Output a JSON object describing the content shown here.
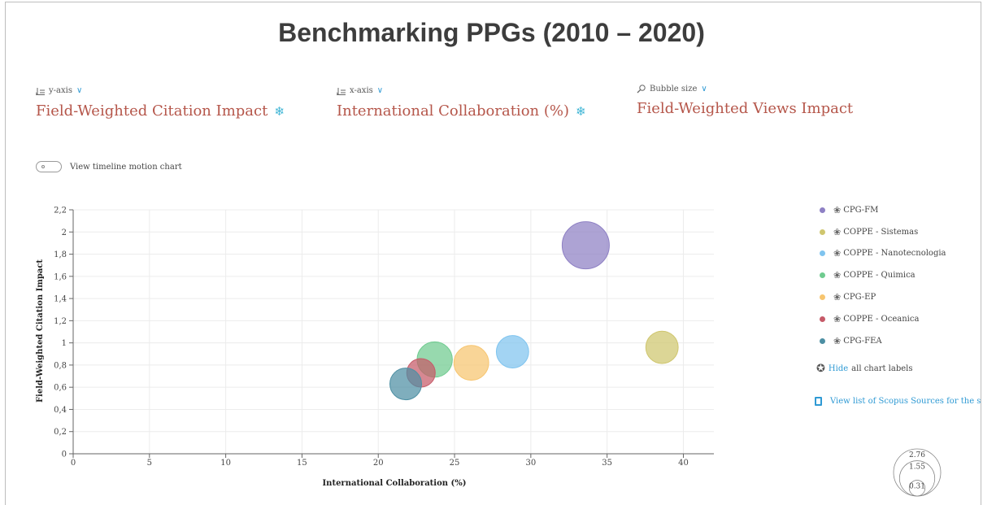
{
  "page_title": "Benchmarking PPGs (2010 – 2020)",
  "y_selector": {
    "label": "y-axis",
    "value": "Field-Weighted Citation Impact",
    "icon": "snowflake-icon"
  },
  "x_selector": {
    "label": "x-axis",
    "value": "International Collaboration (%)",
    "icon": "snowflake-icon"
  },
  "size_selector": {
    "label": "Bubble size",
    "value": "Field-Weighted Views Impact"
  },
  "timeline_toggle": {
    "label": "View timeline motion chart",
    "on": false
  },
  "hide_labels": {
    "link": "Hide",
    "rest": "all chart labels"
  },
  "scopus_link": "View list of Scopus Sources for the se",
  "size_key": {
    "values": [
      "2.76",
      "1.55",
      "0.31"
    ]
  },
  "chart_data": {
    "type": "scatter",
    "xlabel": "International Collaboration (%)",
    "ylabel": "Field-Weighted Citation Impact",
    "xlim": [
      0,
      42
    ],
    "ylim": [
      0,
      2.2
    ],
    "x_ticks": [
      "0",
      "5",
      "10",
      "15",
      "20",
      "25",
      "30",
      "35",
      "40"
    ],
    "y_ticks": [
      "0",
      "0,2",
      "0,4",
      "0,6",
      "0,8",
      "1",
      "1,2",
      "1,4",
      "1,6",
      "1,8",
      "2",
      "2,2"
    ],
    "grid": true,
    "legend_position": "right",
    "series": [
      {
        "name": "CPG-FM",
        "x": 33.6,
        "y": 1.88,
        "size": 2.76,
        "color": "#8e80c4"
      },
      {
        "name": "COPPE - Sistemas",
        "x": 38.6,
        "y": 0.96,
        "size": 1.3,
        "color": "#cfc66e"
      },
      {
        "name": "COPPE - Nanotecnologia",
        "x": 28.8,
        "y": 0.92,
        "size": 1.3,
        "color": "#7fc4ef"
      },
      {
        "name": "COPPE - Quimica",
        "x": 23.7,
        "y": 0.85,
        "size": 1.55,
        "color": "#6fcb8f"
      },
      {
        "name": "CPG-EP",
        "x": 26.1,
        "y": 0.82,
        "size": 1.5,
        "color": "#f7c56f"
      },
      {
        "name": "COPPE - Oceanica",
        "x": 22.8,
        "y": 0.73,
        "size": 1.0,
        "color": "#c65a68"
      },
      {
        "name": "CPG-FEA",
        "x": 21.8,
        "y": 0.63,
        "size": 1.25,
        "color": "#4d8fa3"
      }
    ]
  }
}
